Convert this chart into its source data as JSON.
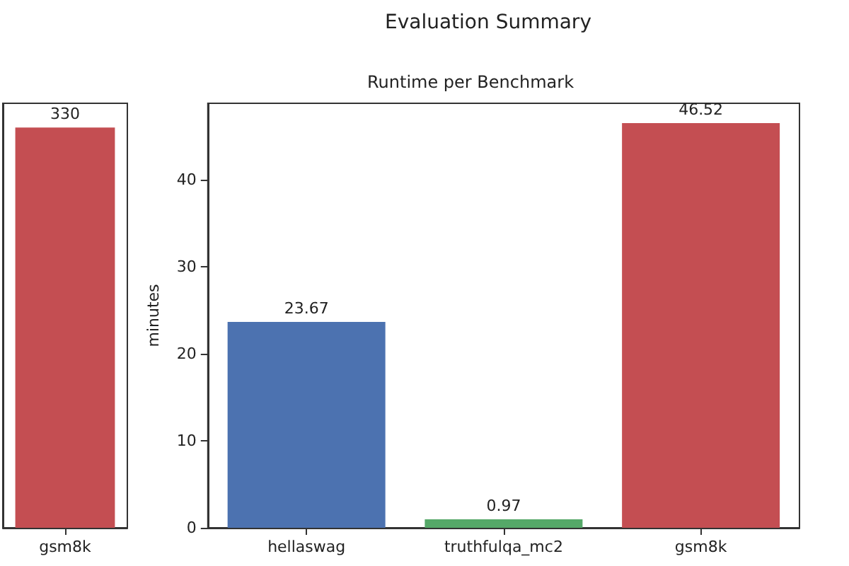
{
  "chart_data": [
    {
      "type": "bar",
      "categories": [
        "gsm8k"
      ],
      "values": [
        330
      ],
      "colors": [
        "#c44e52"
      ],
      "data_labels": true,
      "tick_labels": "x",
      "grid": false
    },
    {
      "type": "bar",
      "title": "Evaluation Summary",
      "subtitle": "Runtime per Benchmark",
      "ylabel": "minutes",
      "categories": [
        "hellaswag",
        "truthfulqa_mc2",
        "gsm8k"
      ],
      "values": [
        23.67,
        0.97,
        46.52
      ],
      "colors": [
        "#4c72b0",
        "#55a868",
        "#c44e52"
      ],
      "data_labels": true,
      "ylim": [
        0,
        48.8
      ],
      "yticks": [
        0,
        10,
        20,
        30,
        40
      ],
      "grid": false
    }
  ]
}
